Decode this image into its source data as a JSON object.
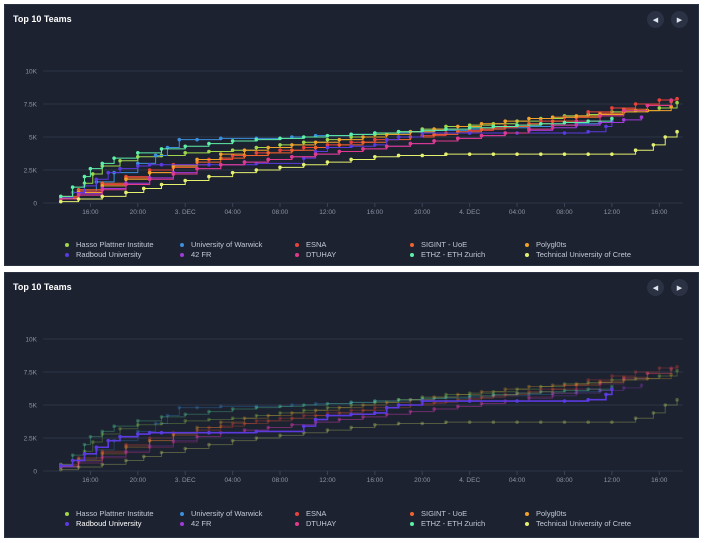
{
  "panels": [
    {
      "title": "Top 10 Teams",
      "prev_icon": "◀",
      "next_icon": "▶",
      "highlight": null
    },
    {
      "title": "Top 10 Teams",
      "prev_icon": "◀",
      "next_icon": "▶",
      "highlight": "Radboud University"
    }
  ],
  "chart_data": {
    "type": "line",
    "step": true,
    "title": "Top 10 Teams",
    "xlabel": "",
    "ylabel": "",
    "xlim": [
      12,
      66
    ],
    "ylim": [
      0,
      10000
    ],
    "y_ticks": [
      0,
      2500,
      5000,
      7500,
      10000
    ],
    "y_tick_labels": [
      "0",
      "2.5K",
      "5K",
      "7.5K",
      "10K"
    ],
    "x_ticks": [
      16,
      20,
      24,
      28,
      32,
      36,
      40,
      44,
      48,
      52,
      56,
      60,
      64
    ],
    "x_tick_labels": [
      "16:00",
      "20:00",
      "3. DEC",
      "04:00",
      "08:00",
      "12:00",
      "16:00",
      "20:00",
      "4. DEC",
      "04:00",
      "08:00",
      "12:00",
      "16:00"
    ],
    "grid": true,
    "legend_position": "bottom",
    "series": [
      {
        "name": "Hasso Plattner Institute",
        "color": "#9fd64a",
        "x": [
          13.5,
          14.5,
          15.5,
          16.2,
          17,
          18.5,
          20,
          22,
          24,
          26,
          28,
          30,
          32,
          34,
          36,
          38,
          40,
          42,
          44,
          46,
          48,
          50,
          52,
          54,
          56,
          58,
          60,
          62,
          64,
          65.5
        ],
        "y": [
          400,
          800,
          1500,
          2200,
          2800,
          3200,
          3500,
          3600,
          3800,
          3900,
          4000,
          4200,
          4400,
          4600,
          4800,
          5000,
          5200,
          5400,
          5600,
          5800,
          5900,
          6000,
          6200,
          6400,
          6600,
          6700,
          6900,
          7000,
          7200,
          7600
        ]
      },
      {
        "name": "University of Warwick",
        "color": "#3b8fdc",
        "x": [
          13.5,
          15,
          16.5,
          18,
          20,
          21.5,
          22.5,
          23.5,
          25,
          27,
          30,
          33,
          35,
          38,
          40,
          43,
          45,
          48,
          50,
          53,
          55,
          57,
          59,
          60
        ],
        "y": [
          300,
          900,
          1600,
          2300,
          3000,
          3600,
          4200,
          4800,
          4800,
          4900,
          4900,
          5000,
          5100,
          5200,
          5300,
          5400,
          5500,
          5600,
          5700,
          5800,
          5900,
          6000,
          6100,
          6200
        ]
      },
      {
        "name": "ESNA",
        "color": "#e8433a",
        "x": [
          13.5,
          15,
          17,
          19,
          21,
          23,
          26,
          28,
          30,
          32,
          34,
          36,
          38,
          40,
          42,
          44,
          46,
          48,
          50,
          52,
          54,
          56,
          58,
          60,
          62,
          64,
          65.5
        ],
        "y": [
          400,
          900,
          1400,
          2000,
          2500,
          2900,
          3300,
          3600,
          3800,
          4000,
          4200,
          4400,
          4600,
          4800,
          5000,
          5100,
          5300,
          5500,
          5700,
          5900,
          6200,
          6500,
          6900,
          7200,
          7500,
          7800,
          7900
        ]
      },
      {
        "name": "SIGINT - UoE",
        "color": "#f0622d",
        "x": [
          13.5,
          15,
          17,
          19,
          21,
          23,
          25,
          27,
          29,
          31,
          33,
          35,
          37,
          39,
          41,
          43,
          45,
          47,
          49,
          51,
          53,
          55,
          57,
          59,
          61,
          63,
          65
        ],
        "y": [
          500,
          1000,
          1500,
          1900,
          2300,
          2700,
          3100,
          3400,
          3600,
          3800,
          4000,
          4200,
          4400,
          4600,
          4800,
          5000,
          5200,
          5400,
          5600,
          5800,
          6000,
          6200,
          6500,
          6800,
          7100,
          7400,
          7700
        ]
      },
      {
        "name": "Polygl0ts",
        "color": "#f2a22a",
        "x": [
          13.5,
          15,
          17,
          19,
          21,
          23,
          25,
          27,
          29,
          31,
          33,
          35,
          37,
          39,
          41,
          43,
          45,
          47,
          49,
          51,
          53,
          55,
          57,
          59,
          61,
          63,
          65
        ],
        "y": [
          350,
          800,
          1300,
          1800,
          2300,
          2800,
          3300,
          3700,
          4000,
          4200,
          4400,
          4600,
          4800,
          5000,
          5200,
          5400,
          5600,
          5800,
          6000,
          6200,
          6400,
          6500,
          6600,
          6700,
          6900,
          7000,
          7300
        ]
      },
      {
        "name": "Radboud University",
        "color": "#5b3ae0",
        "x": [
          13.5,
          14.5,
          15.5,
          16.5,
          17.5,
          18.5,
          20,
          21,
          22,
          26,
          30,
          34,
          35,
          36,
          38,
          40,
          41,
          42,
          44,
          48,
          52,
          56,
          58,
          59.5,
          60
        ],
        "y": [
          400,
          800,
          1300,
          1800,
          2300,
          2600,
          2800,
          2900,
          2900,
          2900,
          3000,
          3400,
          3900,
          4200,
          4300,
          4400,
          4800,
          5000,
          5300,
          5300,
          5300,
          5300,
          5400,
          5800,
          6200
        ]
      },
      {
        "name": "42 FR",
        "color": "#a13ad8",
        "x": [
          13.5,
          15,
          17,
          19,
          21,
          23,
          25,
          27,
          29,
          31,
          33,
          35,
          37,
          39,
          41,
          43,
          45,
          47,
          49,
          51,
          53,
          55,
          57,
          59,
          61,
          62.5
        ],
        "y": [
          300,
          700,
          1100,
          1500,
          1900,
          2300,
          2600,
          2900,
          3100,
          3300,
          3500,
          3700,
          3900,
          4100,
          4300,
          4500,
          4700,
          4900,
          5100,
          5300,
          5500,
          5700,
          5900,
          6100,
          6300,
          6500
        ]
      },
      {
        "name": "DTUHAY",
        "color": "#e13a8c",
        "x": [
          13.5,
          15,
          17,
          19,
          21,
          23,
          25,
          27,
          29,
          31,
          33,
          35,
          37,
          39,
          41,
          43,
          45,
          47,
          49,
          51,
          53,
          55,
          57,
          59,
          61,
          63,
          65
        ],
        "y": [
          300,
          600,
          1000,
          1400,
          1800,
          2200,
          2600,
          2900,
          3100,
          3300,
          3500,
          3700,
          3900,
          4100,
          4300,
          4500,
          4700,
          4900,
          5100,
          5300,
          5600,
          5900,
          6200,
          6600,
          7000,
          7400,
          7800
        ]
      },
      {
        "name": "ETHZ - ETH Zurich",
        "color": "#5ef0a8",
        "x": [
          13.5,
          14.5,
          15.5,
          16,
          17,
          18,
          20,
          22,
          24,
          26,
          28,
          30,
          32,
          34,
          36,
          38,
          40,
          42,
          44,
          46,
          48,
          50,
          52,
          54,
          56,
          58,
          60
        ],
        "y": [
          500,
          1200,
          2000,
          2600,
          3000,
          3400,
          3800,
          4100,
          4300,
          4500,
          4700,
          4800,
          4900,
          5000,
          5100,
          5200,
          5300,
          5400,
          5500,
          5600,
          5700,
          5800,
          5900,
          6000,
          6100,
          6200,
          6400
        ]
      },
      {
        "name": "Technical University of Crete",
        "color": "#e4f06e",
        "x": [
          13.5,
          15,
          17,
          19,
          20.5,
          22,
          24,
          26,
          28,
          30,
          32,
          34,
          36,
          38,
          40,
          42,
          44,
          46,
          48,
          50,
          52,
          54,
          56,
          58,
          60,
          62,
          63.5,
          64.5,
          65.5
        ],
        "y": [
          100,
          300,
          500,
          800,
          1100,
          1400,
          1700,
          2000,
          2300,
          2500,
          2700,
          2900,
          3100,
          3300,
          3500,
          3600,
          3600,
          3700,
          3700,
          3700,
          3700,
          3700,
          3700,
          3700,
          3700,
          4000,
          4400,
          5000,
          5400
        ]
      }
    ]
  }
}
